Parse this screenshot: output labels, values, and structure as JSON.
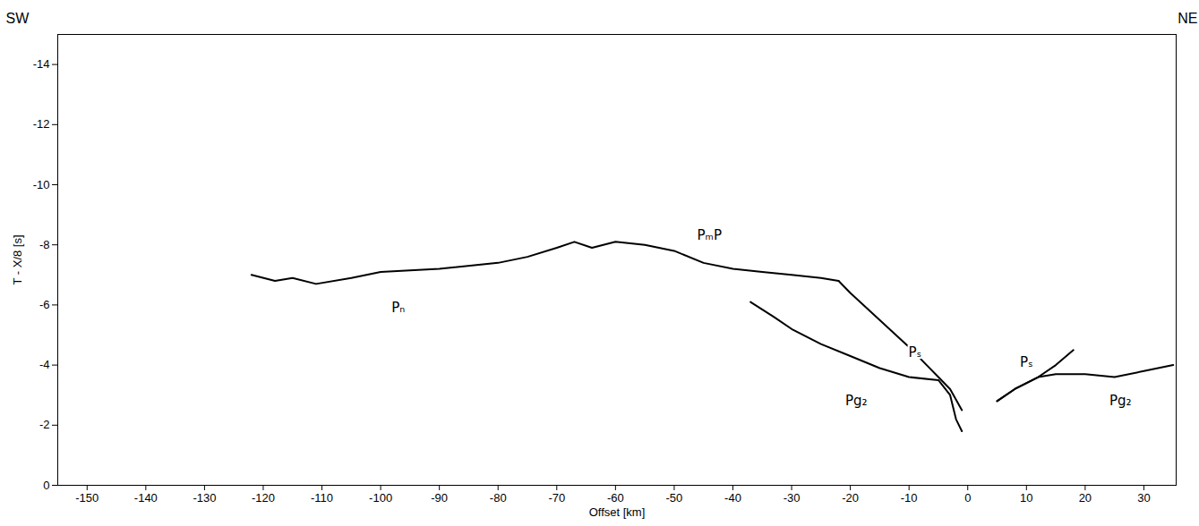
{
  "chart_data": {
    "type": "line",
    "x_label": "Offset [km]",
    "y_label": "T - X/8 [s]",
    "corner_labels": {
      "left": "SW",
      "right": "NE"
    },
    "xlim": [
      -155,
      35.5
    ],
    "xticks": [
      -150,
      -140,
      -130,
      -120,
      -110,
      -100,
      -90,
      -80,
      -70,
      -60,
      -50,
      -40,
      -30,
      -20,
      -10,
      0,
      10,
      20,
      30
    ],
    "ylim": [
      0,
      -15
    ],
    "yticks": [
      0,
      -2,
      -4,
      -6,
      -8,
      -10,
      -12,
      -14
    ],
    "color": "#000000",
    "series": [
      {
        "name": "Pₙ",
        "x": [
          -122,
          -118,
          -115,
          -111,
          -105,
          -100,
          -90,
          -80,
          -75,
          -70,
          -67,
          -64,
          -60,
          -55,
          -50,
          -45,
          -40,
          -35,
          -30,
          -25,
          -22
        ],
        "values": [
          -7.0,
          -6.8,
          -6.9,
          -6.7,
          -6.9,
          -7.1,
          -7.2,
          -7.4,
          -7.6,
          -7.9,
          -8.1,
          -7.9,
          -8.1,
          -8.0,
          -7.8,
          -7.4,
          -7.2,
          -7.1,
          -7.0,
          -6.9,
          -6.8
        ]
      },
      {
        "name": "Pₛ",
        "x": [
          -22,
          -20,
          -15,
          -10,
          -7,
          -5,
          -3,
          -1
        ],
        "values": [
          -6.8,
          -6.4,
          -5.5,
          -4.6,
          -4.0,
          -3.6,
          -3.2,
          -2.5
        ]
      },
      {
        "name": "Pg₂",
        "x": [
          -37,
          -33,
          -30,
          -25,
          -20,
          -15,
          -10,
          -5,
          -3,
          -2,
          -1
        ],
        "values": [
          -6.1,
          -5.6,
          -5.2,
          -4.7,
          -4.3,
          -3.9,
          -3.6,
          -3.5,
          -3.0,
          -2.2,
          -1.8
        ]
      },
      {
        "name": "Pₛ",
        "x": [
          5,
          8,
          12,
          15,
          18
        ],
        "values": [
          -2.8,
          -3.2,
          -3.6,
          -4.0,
          -4.5
        ]
      },
      {
        "name": "Pg₂",
        "x": [
          5,
          8,
          12,
          15,
          20,
          25,
          30,
          35
        ],
        "values": [
          -2.8,
          -3.2,
          -3.6,
          -3.7,
          -3.7,
          -3.6,
          -3.8,
          -4.0
        ]
      }
    ],
    "annotations": [
      {
        "text": "Pₙ",
        "x": -97,
        "y": -5.9
      },
      {
        "text": "PₘP",
        "x": -44,
        "y": -8.3
      },
      {
        "text": "Pₛ",
        "x": -9,
        "y": -4.4
      },
      {
        "text": "Pₛ",
        "x": 10,
        "y": -4.1
      },
      {
        "text": "Pg₂",
        "x": -19,
        "y": -2.8
      },
      {
        "text": "Pg₂",
        "x": 26,
        "y": -2.8
      }
    ]
  }
}
